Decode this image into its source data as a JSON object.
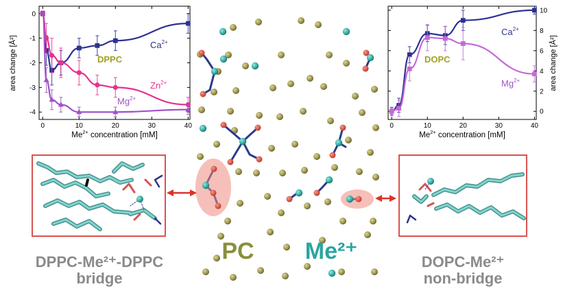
{
  "left_chart": {
    "ylabel": "area change [Å²]",
    "xlabel_pre": "Me",
    "xlabel_sup": "2+",
    "xlabel_post": " concentration  [mM]",
    "title": "DPPC",
    "x_ticks": [
      "0",
      "10",
      "20",
      "30",
      "40"
    ],
    "y_ticks": [
      "0",
      "-1",
      "-2",
      "-3",
      "-4"
    ],
    "labels": {
      "ca_main": "Ca",
      "ca_sup": "2+",
      "zn_main": "Zn",
      "zn_sup": "2+",
      "mg_main": "Mg",
      "mg_sup": "2+"
    }
  },
  "right_chart": {
    "ylabel": "area change [Å²]",
    "xlabel_pre": "Me",
    "xlabel_sup": "2+",
    "xlabel_post": " concentration  [mM]",
    "title": "DOPC",
    "x_ticks": [
      "0",
      "10",
      "20",
      "30",
      "40"
    ],
    "y_ticks": [
      "0",
      "2",
      "4",
      "6",
      "8",
      "10"
    ],
    "labels": {
      "ca_main": "Ca",
      "ca_sup": "2+",
      "mg_main": "Mg",
      "mg_sup": "2+"
    }
  },
  "chart_data": [
    {
      "type": "line",
      "title": "DPPC",
      "xlabel": "Me²⁺ concentration [mM]",
      "ylabel": "area change [Å²]",
      "xlim": [
        -1,
        40.5
      ],
      "ylim": [
        -4.3,
        0.3
      ],
      "grid": false,
      "series": [
        {
          "name": "Ca2+",
          "color": "#2e3192",
          "x": [
            0,
            1,
            2.5,
            5,
            10,
            15,
            20,
            40
          ],
          "y": [
            0,
            -1.5,
            -2.3,
            -2.0,
            -1.4,
            -1.3,
            -1.1,
            -0.4
          ],
          "err": [
            0.1,
            0.6,
            0.6,
            0.5,
            0.4,
            0.4,
            0.4,
            0.4
          ]
        },
        {
          "name": "Zn2+",
          "color": "#e6338f",
          "x": [
            0,
            1,
            2.5,
            5,
            10,
            15,
            20,
            40
          ],
          "y": [
            0,
            -1.0,
            -1.7,
            -2.0,
            -2.4,
            -2.9,
            -3.0,
            -3.7
          ],
          "err": [
            0.1,
            0.6,
            0.7,
            0.6,
            0.5,
            0.4,
            0.4,
            0.3
          ]
        },
        {
          "name": "Mg2+",
          "color": "#a052c8",
          "x": [
            0,
            1,
            2.5,
            5,
            10,
            20,
            40
          ],
          "y": [
            0,
            -2.7,
            -3.5,
            -3.7,
            -4.0,
            -4.0,
            -3.9
          ],
          "err": [
            0.1,
            0.5,
            0.4,
            0.3,
            0.2,
            0.2,
            0.2
          ]
        }
      ]
    },
    {
      "type": "line",
      "title": "DOPC",
      "xlabel": "Me²⁺ concentration [mM]",
      "ylabel": "area change [Å²]",
      "xlim": [
        -1,
        40.5
      ],
      "ylim": [
        -0.8,
        10.4
      ],
      "grid": false,
      "series": [
        {
          "name": "Ca2+",
          "color": "#2e3192",
          "x": [
            0,
            2,
            5,
            10,
            15,
            20,
            40
          ],
          "y": [
            0,
            0.6,
            5.6,
            7.7,
            7.5,
            9.0,
            10.0
          ],
          "err": [
            0.4,
            0.7,
            0.8,
            0.8,
            0.9,
            1.0,
            0.4
          ]
        },
        {
          "name": "Mg2+",
          "color": "#c46ad8",
          "x": [
            0,
            2,
            5,
            10,
            15,
            20,
            40
          ],
          "y": [
            0,
            0.3,
            4.2,
            7.3,
            7.2,
            6.7,
            3.7
          ],
          "err": [
            0.3,
            0.8,
            1.2,
            1.3,
            1.2,
            1.6,
            0.8
          ]
        }
      ]
    }
  ],
  "labels": {
    "left_snapshot_line1": "DPPC-Me²⁺-DPPC",
    "left_snapshot_line2": "bridge",
    "right_snapshot_line1": "DOPC-Me²⁺",
    "right_snapshot_line2": "non-bridge",
    "pc": "PC",
    "me": "Me²⁺"
  },
  "colors": {
    "ca": "#2e3192",
    "zn": "#e6338f",
    "mg": "#a052c8",
    "pc_atom": "#a59d56",
    "me_atom": "#3cb4a9",
    "box": "#d9534f",
    "pc_text": "#8a8f3a",
    "me_text": "#2aa5a0"
  }
}
